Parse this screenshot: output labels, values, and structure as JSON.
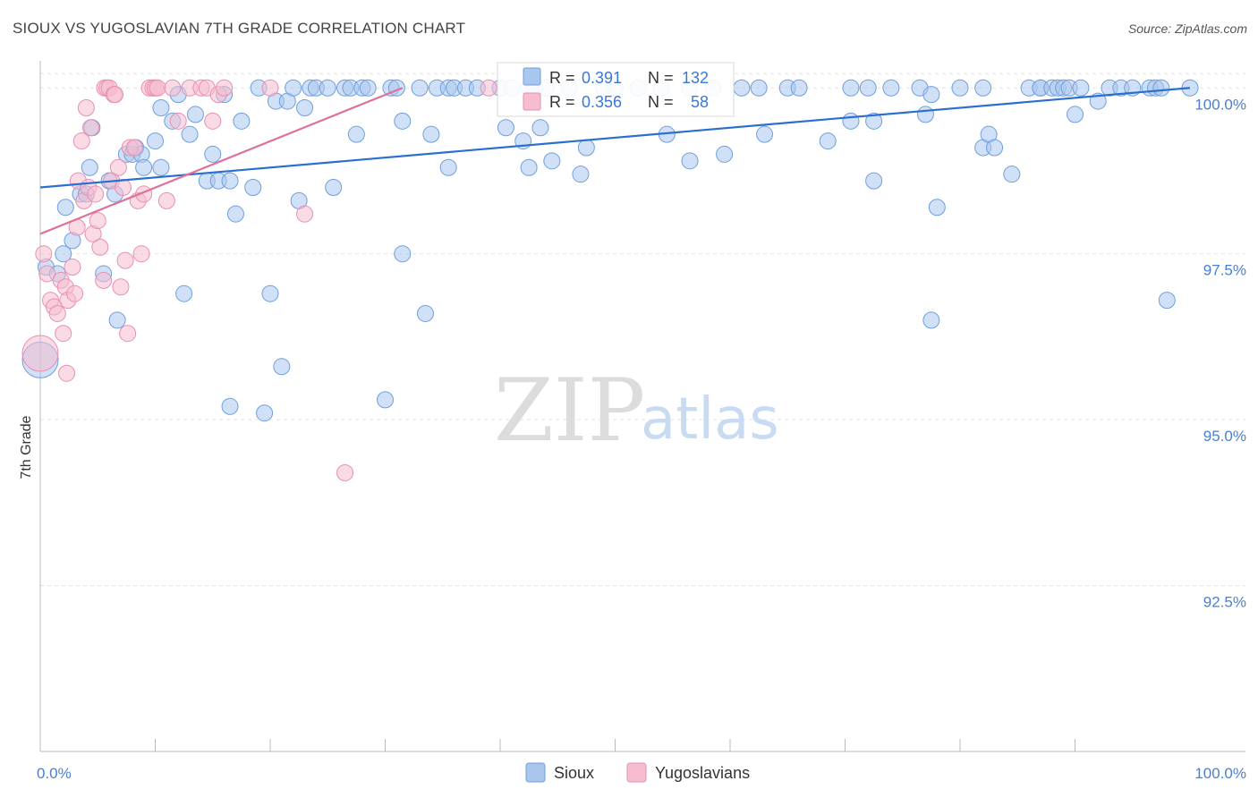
{
  "header": {
    "title": "SIOUX VS YUGOSLAVIAN 7TH GRADE CORRELATION CHART",
    "source": "Source: ZipAtlas.com"
  },
  "watermark": {
    "zip": "ZIP",
    "atlas": "atlas"
  },
  "colors": {
    "sioux_fill": "#a9c6ee",
    "sioux_stroke": "#6f9fdc",
    "sioux_line": "#2a6fd0",
    "yugo_fill": "#f6bdd0",
    "yugo_stroke": "#e98fb0",
    "yugo_line": "#e07099"
  },
  "chart_data": {
    "type": "scatter",
    "title": "SIOUX VS YUGOSLAVIAN 7TH GRADE CORRELATION CHART",
    "xlabel": "",
    "ylabel": "7th Grade",
    "xlim": [
      0,
      100
    ],
    "ylim": [
      90.0,
      100.3
    ],
    "x_tick_labels": [
      "0.0%",
      "100.0%"
    ],
    "y_ticks": [
      92.5,
      95.0,
      97.5,
      100.0
    ],
    "y_tick_labels": [
      "92.5%",
      "95.0%",
      "97.5%",
      "100.0%"
    ],
    "grid": true,
    "legend": {
      "position": "top-center",
      "rows": [
        {
          "r_label": "R =",
          "r": "0.391",
          "n_label": "N =",
          "n": "132"
        },
        {
          "r_label": "R =",
          "r": "0.356",
          "n_label": "N =",
          "n": "58"
        }
      ]
    },
    "bottom_legend": [
      "Sioux",
      "Yugoslavians"
    ],
    "series": [
      {
        "name": "Sioux",
        "trend": {
          "x0": 0,
          "y0": 98.5,
          "x1": 100,
          "y1": 100.0
        },
        "points": [
          [
            0,
            95.9
          ],
          [
            0.5,
            97.3
          ],
          [
            1.5,
            97.2
          ],
          [
            2,
            97.5
          ],
          [
            2.2,
            98.2
          ],
          [
            2.8,
            97.7
          ],
          [
            3.5,
            98.4
          ],
          [
            4,
            98.4
          ],
          [
            4.3,
            98.8
          ],
          [
            4.5,
            99.4
          ],
          [
            5.5,
            97.2
          ],
          [
            6,
            98.6
          ],
          [
            6.5,
            98.4
          ],
          [
            6.7,
            96.5
          ],
          [
            7.5,
            99.0
          ],
          [
            8,
            99.0
          ],
          [
            8.3,
            99.1
          ],
          [
            8.8,
            99.0
          ],
          [
            9,
            98.8
          ],
          [
            10,
            99.2
          ],
          [
            10.5,
            98.8
          ],
          [
            10.5,
            99.7
          ],
          [
            11.5,
            99.5
          ],
          [
            12,
            99.9
          ],
          [
            12.5,
            96.9
          ],
          [
            13,
            99.3
          ],
          [
            13.5,
            99.6
          ],
          [
            14.5,
            98.6
          ],
          [
            15,
            99.0
          ],
          [
            15.5,
            98.6
          ],
          [
            16,
            99.9
          ],
          [
            16.5,
            98.6
          ],
          [
            16.5,
            95.2
          ],
          [
            17,
            98.1
          ],
          [
            17.5,
            99.5
          ],
          [
            18.5,
            98.5
          ],
          [
            19,
            100
          ],
          [
            19.5,
            95.1
          ],
          [
            20,
            96.9
          ],
          [
            20.5,
            99.8
          ],
          [
            21,
            95.8
          ],
          [
            21.5,
            99.8
          ],
          [
            22,
            100
          ],
          [
            22.5,
            98.3
          ],
          [
            23,
            99.7
          ],
          [
            23.5,
            100
          ],
          [
            24,
            100
          ],
          [
            25,
            100
          ],
          [
            25.5,
            98.5
          ],
          [
            26.5,
            100
          ],
          [
            27,
            100
          ],
          [
            27.5,
            99.3
          ],
          [
            28,
            100
          ],
          [
            28.5,
            100
          ],
          [
            30,
            95.3
          ],
          [
            30.5,
            100
          ],
          [
            31,
            100
          ],
          [
            31.5,
            99.5
          ],
          [
            31.5,
            97.5
          ],
          [
            33,
            100
          ],
          [
            33.5,
            96.6
          ],
          [
            34,
            99.3
          ],
          [
            34.5,
            100
          ],
          [
            35.5,
            100
          ],
          [
            35.5,
            98.8
          ],
          [
            36,
            100
          ],
          [
            37,
            100
          ],
          [
            38,
            100
          ],
          [
            40,
            100
          ],
          [
            40.5,
            99.4
          ],
          [
            41,
            100
          ],
          [
            42,
            99.2
          ],
          [
            42.5,
            100
          ],
          [
            42.5,
            98.8
          ],
          [
            43,
            100
          ],
          [
            43.5,
            99.4
          ],
          [
            44,
            100
          ],
          [
            44.5,
            98.9
          ],
          [
            46,
            100
          ],
          [
            47,
            98.7
          ],
          [
            47.5,
            99.1
          ],
          [
            49,
            100
          ],
          [
            50,
            100
          ],
          [
            52,
            100
          ],
          [
            54,
            100
          ],
          [
            54.5,
            99.3
          ],
          [
            56.5,
            100
          ],
          [
            56.5,
            98.9
          ],
          [
            58.5,
            100
          ],
          [
            59.5,
            99.0
          ],
          [
            61,
            100
          ],
          [
            62.5,
            100
          ],
          [
            63,
            99.3
          ],
          [
            65,
            100
          ],
          [
            66,
            100
          ],
          [
            68.5,
            99.2
          ],
          [
            70.5,
            100
          ],
          [
            70.5,
            99.5
          ],
          [
            72,
            100
          ],
          [
            72.5,
            99.5
          ],
          [
            72.5,
            98.6
          ],
          [
            74,
            100
          ],
          [
            76.5,
            100
          ],
          [
            77,
            99.6
          ],
          [
            77.5,
            99.9
          ],
          [
            77.5,
            96.5
          ],
          [
            78,
            98.2
          ],
          [
            80,
            100
          ],
          [
            82,
            99.1
          ],
          [
            82,
            100
          ],
          [
            82.5,
            99.3
          ],
          [
            83,
            99.1
          ],
          [
            84.5,
            98.7
          ],
          [
            86,
            100
          ],
          [
            87,
            100
          ],
          [
            87,
            100
          ],
          [
            88,
            100
          ],
          [
            88.5,
            100
          ],
          [
            89,
            100
          ],
          [
            89.5,
            100
          ],
          [
            90,
            99.6
          ],
          [
            90.5,
            100
          ],
          [
            92,
            99.8
          ],
          [
            93,
            100
          ],
          [
            94,
            100
          ],
          [
            95,
            100
          ],
          [
            96.5,
            100
          ],
          [
            97,
            100
          ],
          [
            97.5,
            100
          ],
          [
            98,
            96.8
          ],
          [
            100,
            100
          ]
        ]
      },
      {
        "name": "Yugoslavians",
        "trend": {
          "x0": 0,
          "y0": 97.8,
          "x1": 31.5,
          "y1": 100.0
        },
        "points": [
          [
            0,
            96.0
          ],
          [
            0.3,
            97.5
          ],
          [
            0.6,
            97.2
          ],
          [
            0.9,
            96.8
          ],
          [
            1.2,
            96.7
          ],
          [
            1.5,
            96.6
          ],
          [
            1.8,
            97.1
          ],
          [
            2,
            96.3
          ],
          [
            2.2,
            97.0
          ],
          [
            2.3,
            95.7
          ],
          [
            2.4,
            96.8
          ],
          [
            2.8,
            97.3
          ],
          [
            3,
            96.9
          ],
          [
            3.2,
            97.9
          ],
          [
            3.3,
            98.6
          ],
          [
            3.6,
            99.2
          ],
          [
            3.8,
            98.3
          ],
          [
            4,
            99.7
          ],
          [
            4.2,
            98.5
          ],
          [
            4.4,
            99.4
          ],
          [
            4.6,
            97.8
          ],
          [
            4.8,
            98.4
          ],
          [
            5,
            98.0
          ],
          [
            5.2,
            97.6
          ],
          [
            5.5,
            97.1
          ],
          [
            5.6,
            100
          ],
          [
            5.8,
            100
          ],
          [
            6,
            100
          ],
          [
            6.2,
            98.6
          ],
          [
            6.4,
            99.9
          ],
          [
            6.5,
            99.9
          ],
          [
            6.8,
            98.8
          ],
          [
            7,
            97.0
          ],
          [
            7.2,
            98.5
          ],
          [
            7.4,
            97.4
          ],
          [
            7.6,
            96.3
          ],
          [
            7.8,
            99.1
          ],
          [
            8.2,
            99.1
          ],
          [
            8.5,
            98.3
          ],
          [
            8.8,
            97.5
          ],
          [
            9,
            98.4
          ],
          [
            9.5,
            100
          ],
          [
            9.8,
            100
          ],
          [
            10,
            100
          ],
          [
            10.2,
            100
          ],
          [
            11,
            98.3
          ],
          [
            11.5,
            100
          ],
          [
            12,
            99.5
          ],
          [
            13,
            100
          ],
          [
            14,
            100
          ],
          [
            14.5,
            100
          ],
          [
            15,
            99.5
          ],
          [
            15.5,
            99.9
          ],
          [
            16,
            100
          ],
          [
            20,
            100
          ],
          [
            23,
            98.1
          ],
          [
            26.5,
            94.2
          ],
          [
            39,
            100
          ]
        ]
      }
    ]
  }
}
